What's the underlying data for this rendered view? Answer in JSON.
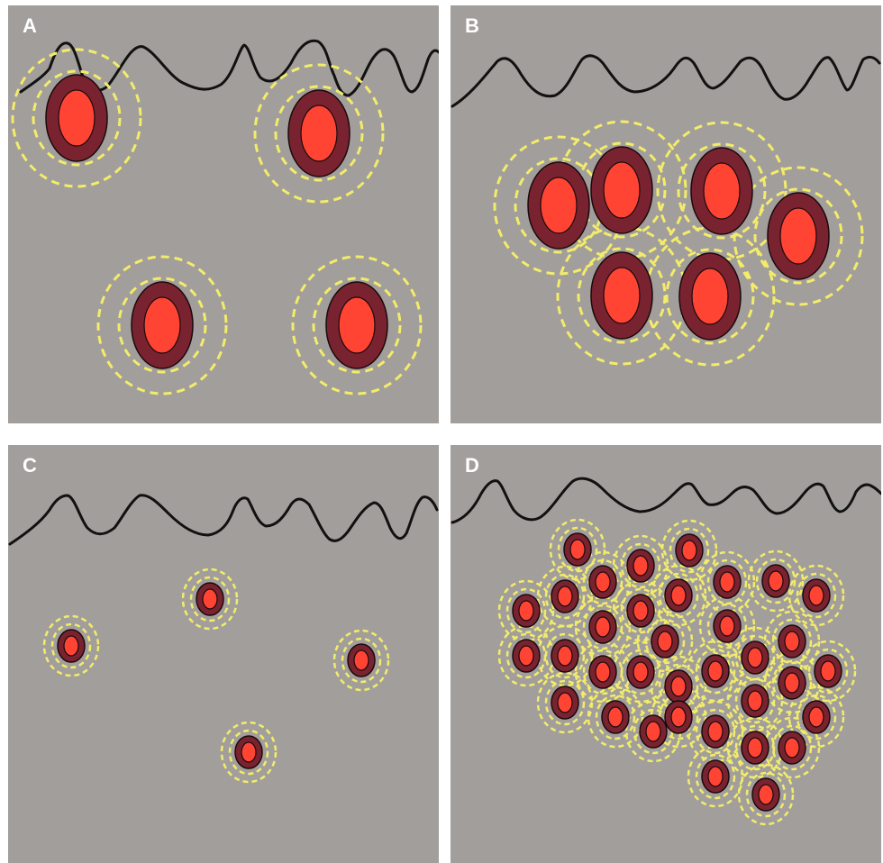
{
  "colors": {
    "background": "#a29e9b",
    "outer_ring": "#7a2330",
    "inner_core": "#ff4433",
    "halo": "#f2ec6a",
    "wave": "#111111",
    "label": "#ffffff"
  },
  "panels": [
    {
      "id": "A",
      "label": "A",
      "has_wave": true,
      "size": "large",
      "cell_count": 4,
      "arrangement": "dispersed"
    },
    {
      "id": "B",
      "label": "B",
      "has_wave": true,
      "size": "large",
      "cell_count": 6,
      "arrangement": "clustered"
    },
    {
      "id": "C",
      "label": "C",
      "has_wave": true,
      "size": "small",
      "cell_count": 4,
      "arrangement": "dispersed"
    },
    {
      "id": "D",
      "label": "D",
      "has_wave": true,
      "size": "small",
      "cell_count": 35,
      "arrangement": "clustered"
    }
  ]
}
